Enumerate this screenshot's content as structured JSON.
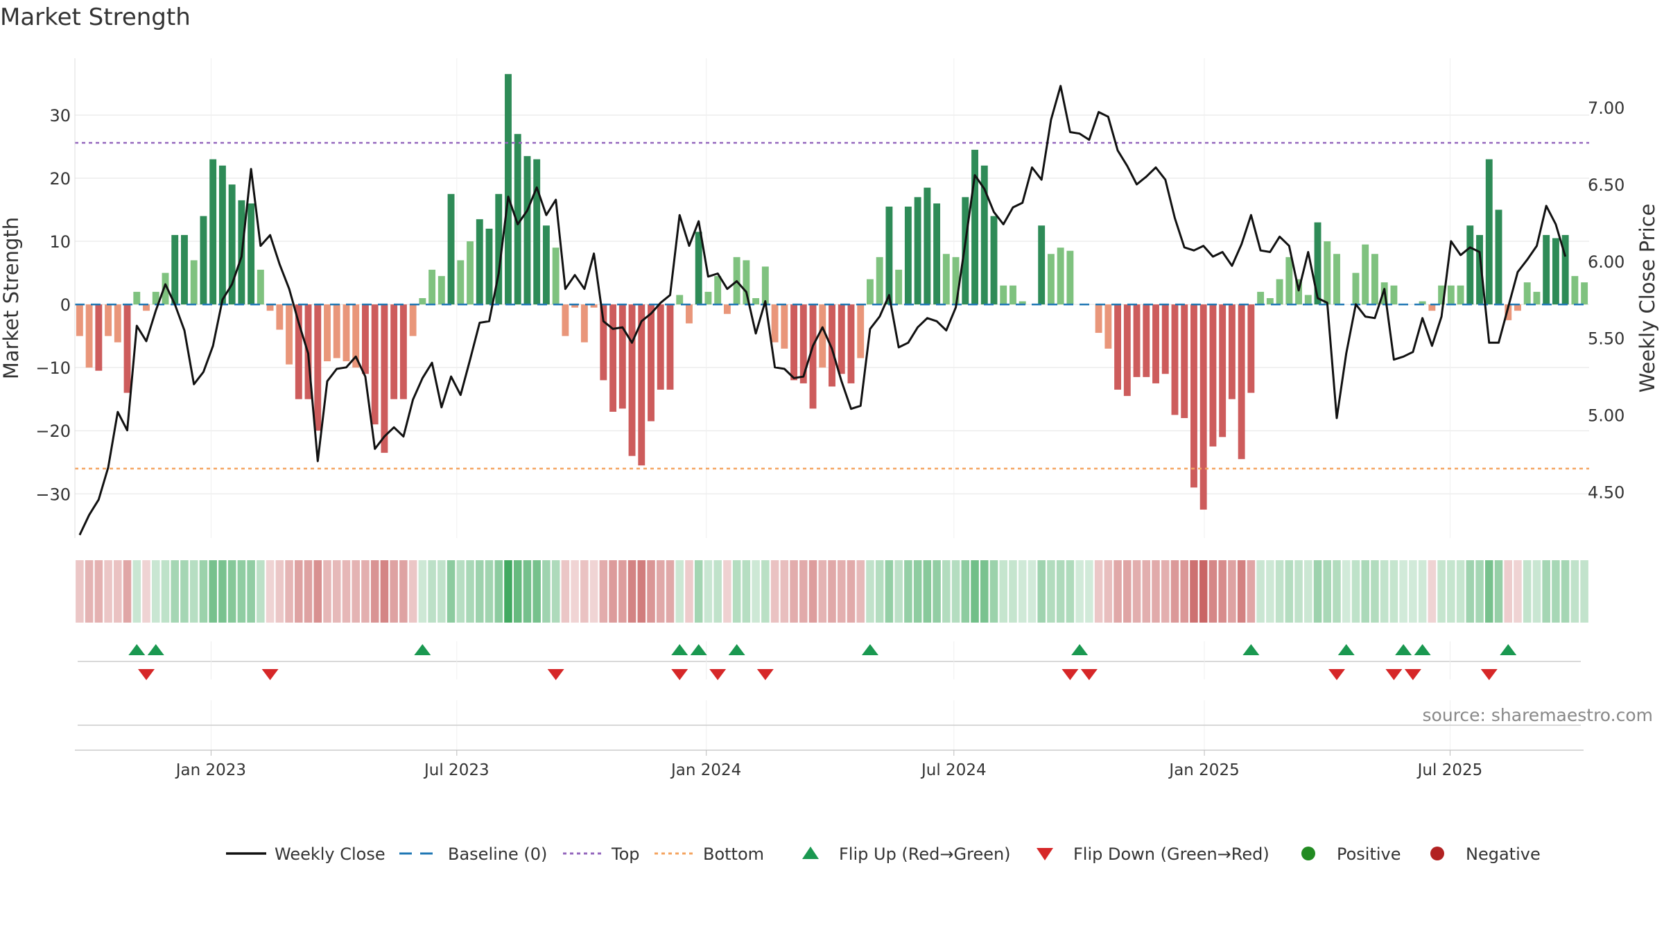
{
  "chart_data": {
    "type": "bar",
    "title": "Market Strength",
    "ylabel": "Market Strength",
    "y2label": "Weekly Close Price",
    "ylim": [
      -37,
      39
    ],
    "y2lim": [
      4.2,
      7.32
    ],
    "yticks": [
      30,
      20,
      10,
      0,
      -10,
      -20,
      -30
    ],
    "ytick_labels": [
      "30",
      "20",
      "10",
      "0",
      "−10",
      "−20",
      "−30"
    ],
    "y2ticks": [
      7.0,
      6.5,
      6.0,
      5.5,
      5.0,
      4.5
    ],
    "y2tick_labels": [
      "7.00",
      "6.50",
      "6.00",
      "5.50",
      "5.00",
      "4.50"
    ],
    "xticks": [
      {
        "label": "Jan 2023",
        "week": 14.3
      },
      {
        "label": "Jul 2023",
        "week": 40.1
      },
      {
        "label": "Jan 2024",
        "week": 66.3
      },
      {
        "label": "Jul 2024",
        "week": 92.3
      },
      {
        "label": "Jan 2025",
        "week": 118.6
      },
      {
        "label": "Jul 2025",
        "week": 144.4
      }
    ],
    "top_level": 25.6,
    "bottom_level": -26,
    "baseline": 0,
    "strength": [
      -5,
      -10,
      -10.5,
      -5,
      -6,
      -14,
      2,
      -1,
      2,
      5,
      11,
      11,
      7,
      14,
      23,
      22,
      19,
      16.5,
      16,
      5.5,
      -1,
      -4,
      -9.5,
      -15,
      -15,
      -20,
      -9,
      -8.5,
      -9,
      -10,
      -11,
      -19,
      -23.5,
      -15,
      -15,
      -5,
      1,
      5.5,
      4.5,
      17.5,
      7,
      10,
      13.5,
      12,
      17.5,
      36.5,
      27,
      23.5,
      23,
      12.5,
      9,
      -5,
      -0.5,
      -6,
      -0.5,
      -12,
      -17,
      -16.5,
      -24,
      -25.5,
      -18.5,
      -13.5,
      -13.5,
      1.5,
      -3,
      11.5,
      2,
      4.5,
      -1.5,
      7.5,
      7,
      1,
      6,
      -6,
      -7,
      -12,
      -12.5,
      -16.5,
      -10,
      -13,
      -11,
      -12.5,
      -8.5,
      4,
      7.5,
      15.5,
      5.5,
      15.5,
      17,
      18.5,
      16,
      8,
      7.5,
      17,
      24.5,
      22,
      14,
      3,
      3,
      0.5,
      0,
      12.5,
      8,
      9,
      8.5,
      0,
      0,
      -4.5,
      -7,
      -13.5,
      -14.5,
      -11.5,
      -11.5,
      -12.5,
      -11,
      -17.5,
      -18,
      -29,
      -32.5,
      -22.5,
      -21,
      -15,
      -24.5,
      -14,
      2,
      1,
      4,
      7.5,
      4,
      1.5,
      13,
      10,
      8,
      0,
      5,
      9.5,
      8,
      3.5,
      3,
      0,
      0,
      0.5,
      -1,
      3,
      3,
      3,
      12.5,
      11,
      23,
      15,
      -2.5,
      -1,
      3.5,
      2,
      11,
      10.5,
      11,
      4.5,
      3.5
    ],
    "weekly_close": [
      4.22,
      4.35,
      4.45,
      4.66,
      5.02,
      4.9,
      5.58,
      5.48,
      5.68,
      5.85,
      5.72,
      5.55,
      5.2,
      5.28,
      5.45,
      5.75,
      5.85,
      6.03,
      6.6,
      6.1,
      6.17,
      5.98,
      5.82,
      5.6,
      5.4,
      4.7,
      5.22,
      5.3,
      5.31,
      5.38,
      5.25,
      4.78,
      4.86,
      4.92,
      4.86,
      5.1,
      5.24,
      5.34,
      5.05,
      5.25,
      5.13,
      5.36,
      5.6,
      5.61,
      5.92,
      6.42,
      6.24,
      6.33,
      6.48,
      6.3,
      6.4,
      5.82,
      5.91,
      5.82,
      6.05,
      5.61,
      5.56,
      5.57,
      5.47,
      5.61,
      5.66,
      5.73,
      5.78,
      6.3,
      6.1,
      6.26,
      5.9,
      5.92,
      5.82,
      5.87,
      5.8,
      5.53,
      5.74,
      5.31,
      5.3,
      5.24,
      5.25,
      5.45,
      5.57,
      5.43,
      5.22,
      5.04,
      5.06,
      5.56,
      5.64,
      5.78,
      5.44,
      5.47,
      5.57,
      5.63,
      5.61,
      5.55,
      5.7,
      6.12,
      6.56,
      6.47,
      6.32,
      6.24,
      6.35,
      6.38,
      6.61,
      6.53,
      6.92,
      7.14,
      6.84,
      6.83,
      6.79,
      6.97,
      6.94,
      6.72,
      6.62,
      6.5,
      6.55,
      6.61,
      6.53,
      6.28,
      6.09,
      6.07,
      6.1,
      6.03,
      6.06,
      5.97,
      6.11,
      6.3,
      6.07,
      6.06,
      6.16,
      6.1,
      5.81,
      6.06,
      5.76,
      5.73,
      4.98,
      5.4,
      5.72,
      5.64,
      5.63,
      5.82,
      5.36,
      5.38,
      5.41,
      5.63,
      5.45,
      5.64,
      6.13,
      6.04,
      6.09,
      6.06,
      5.47,
      5.47,
      5.7,
      5.93,
      6.01,
      6.1,
      6.36,
      6.24,
      6.03
    ],
    "flip_up_weeks": [
      6,
      8,
      36,
      63,
      65,
      69,
      83,
      105,
      123,
      133,
      139,
      141,
      150
    ],
    "flip_down_weeks": [
      7,
      20,
      50,
      63,
      67,
      72,
      104,
      106,
      132,
      138,
      140,
      148
    ],
    "legend": [
      "Weekly Close",
      "Baseline (0)",
      "Top",
      "Bottom",
      "Flip Up (Red→Green)",
      "Flip Down (Green→Red)",
      "Positive",
      "Negative"
    ],
    "legend_position": "bottom-center",
    "annotation": "source: sharemaestro.com"
  },
  "colors": {
    "pos_strong": "#2e8b57",
    "pos_light": "#7fc27f",
    "neg_strong": "#cd5c5c",
    "neg_light": "#e9967a",
    "line": "#111111",
    "baseline": "#1f77b4",
    "top": "#9467bd",
    "bottom": "#f4a460",
    "flip_up": "#1a9850",
    "flip_down": "#d62728",
    "positive_dot": "#228b22",
    "negative_dot": "#b22222",
    "grid": "#e3e3e3",
    "axis_text": "#333333",
    "source_text": "#888888"
  }
}
